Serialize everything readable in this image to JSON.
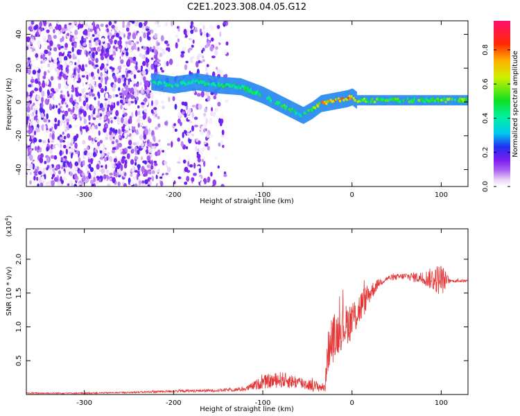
{
  "title": "C2E1.2023.308.04.05.G12",
  "chart_data": [
    {
      "type": "heatmap",
      "xlabel": "Height of straight line (km)",
      "ylabel": "Frequency (Hz)",
      "xlim": [
        -365,
        130
      ],
      "ylim": [
        -50,
        48
      ],
      "xticks": [
        -300,
        -200,
        -100,
        0,
        100
      ],
      "xtick_labels": [
        "-300",
        "-200",
        "-100",
        "0",
        "100"
      ],
      "yticks": [
        -40,
        -20,
        0,
        20,
        40
      ],
      "ytick_labels": [
        "-40",
        "-20",
        "0",
        "20",
        "40"
      ],
      "colorbar": {
        "label": "Normalized spectral amplitude",
        "range": [
          0,
          0.97
        ],
        "ticks": [
          0.0,
          0.2,
          0.4,
          0.6,
          0.8
        ],
        "tick_labels": [
          "0.0",
          "0.2",
          "0.4",
          "0.6",
          "0.8"
        ],
        "colormap": "hsv-like (white, violet, blue, cyan, green, yellow, orange, red, magenta)"
      },
      "signal_track": {
        "x": [
          -225,
          -200,
          -175,
          -150,
          -125,
          -100,
          -85,
          -70,
          -55,
          -45,
          -35,
          -25,
          -15,
          -5,
          0,
          5,
          25,
          50,
          75,
          100,
          130
        ],
        "freq": [
          12,
          10,
          12,
          10,
          9,
          4,
          0,
          -4,
          -8,
          -5,
          -1,
          0,
          1,
          2,
          3,
          1,
          1,
          1,
          1,
          1,
          1
        ],
        "amplitude": [
          0.45,
          0.45,
          0.45,
          0.5,
          0.5,
          0.5,
          0.55,
          0.55,
          0.4,
          0.6,
          0.75,
          0.8,
          0.8,
          0.8,
          0.8,
          0.65,
          0.6,
          0.6,
          0.6,
          0.6,
          0.6
        ]
      },
      "noise_region": {
        "x_from": -365,
        "x_to": -140,
        "amplitude_range": [
          0.0,
          0.2
        ]
      }
    },
    {
      "type": "line",
      "xlabel": "Height of straight line (km)",
      "ylabel": "SNR (10 * v/v)",
      "y_multiplier_label": "(x10",
      "y_multiplier_exp": "4",
      "xlim": [
        -365,
        130
      ],
      "ylim": [
        0,
        2.45
      ],
      "xticks": [
        -300,
        -200,
        -100,
        0,
        100
      ],
      "xtick_labels": [
        "-300",
        "-200",
        "-100",
        "0",
        "100"
      ],
      "yticks": [
        0.5,
        1.0,
        1.5,
        2.0
      ],
      "ytick_labels": [
        "0.5",
        "1.0",
        "1.5",
        "2.0"
      ],
      "color": "#e53535",
      "x": [
        -365,
        -300,
        -250,
        -200,
        -150,
        -120,
        -100,
        -80,
        -60,
        -40,
        -30,
        -28,
        -20,
        -10,
        0,
        10,
        20,
        30,
        40,
        60,
        80,
        100,
        110,
        130
      ],
      "center": [
        0.02,
        0.02,
        0.03,
        0.05,
        0.06,
        0.08,
        0.18,
        0.22,
        0.18,
        0.12,
        0.1,
        0.6,
        0.85,
        1.0,
        1.1,
        1.3,
        1.5,
        1.65,
        1.72,
        1.75,
        1.72,
        1.7,
        1.68,
        1.68
      ],
      "spread": [
        0.01,
        0.01,
        0.01,
        0.02,
        0.02,
        0.03,
        0.1,
        0.12,
        0.1,
        0.08,
        0.06,
        0.3,
        0.35,
        0.3,
        0.3,
        0.25,
        0.15,
        0.06,
        0.04,
        0.05,
        0.1,
        0.25,
        0.02,
        0.02
      ]
    }
  ]
}
